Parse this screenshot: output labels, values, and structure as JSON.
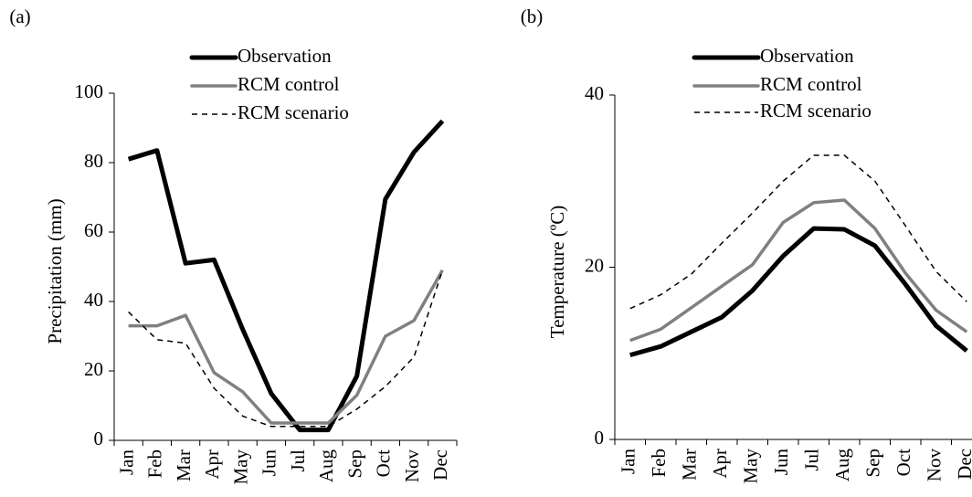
{
  "chart_data": [
    {
      "type": "line",
      "label": "(a)",
      "ylabel": "Precipitation (mm)",
      "categories": [
        "Jan",
        "Feb",
        "Mar",
        "Apr",
        "May",
        "Jun",
        "Jul",
        "Aug",
        "Sep",
        "Oct",
        "Nov",
        "Dec"
      ],
      "series": [
        {
          "name": "Observation",
          "color": "#000000",
          "style": "thick",
          "values": [
            81,
            83.5,
            51,
            52,
            32,
            13.5,
            3,
            3,
            18.5,
            69.5,
            83,
            92
          ]
        },
        {
          "name": "RCM control",
          "color": "#808080",
          "style": "medium",
          "values": [
            33,
            33,
            36,
            19.5,
            14,
            5,
            5,
            5,
            13,
            30,
            34.5,
            49
          ]
        },
        {
          "name": "RCM scenario",
          "color": "#000000",
          "style": "dashed",
          "values": [
            37,
            29,
            28,
            15,
            7,
            4,
            4,
            4,
            9,
            15.5,
            24,
            49
          ]
        }
      ],
      "ylim": [
        0,
        100
      ],
      "yticks": [
        0,
        20,
        40,
        60,
        80,
        100
      ],
      "grid": false
    },
    {
      "type": "line",
      "label": "(b)",
      "ylabel": "Temperature (ºC)",
      "categories": [
        "Jan",
        "Feb",
        "Mar",
        "Apr",
        "May",
        "Jun",
        "Jul",
        "Aug",
        "Sep",
        "Oct",
        "Nov",
        "Dec"
      ],
      "series": [
        {
          "name": "Observation",
          "color": "#000000",
          "style": "thick",
          "values": [
            9.8,
            10.8,
            12.5,
            14.2,
            17.3,
            21.3,
            24.5,
            24.4,
            22.5,
            18,
            13.2,
            10.3
          ]
        },
        {
          "name": "RCM control",
          "color": "#808080",
          "style": "medium",
          "values": [
            11.5,
            12.8,
            15.3,
            17.8,
            20.3,
            25.2,
            27.5,
            27.8,
            24.5,
            19.3,
            15,
            12.5
          ]
        },
        {
          "name": "RCM scenario",
          "color": "#000000",
          "style": "dashed",
          "values": [
            15.2,
            16.8,
            19.2,
            22.8,
            26.3,
            30,
            33,
            33,
            30,
            24.8,
            19.5,
            16
          ]
        }
      ],
      "ylim": [
        0,
        40
      ],
      "yticks": [
        0,
        20,
        40
      ],
      "grid": false
    }
  ]
}
